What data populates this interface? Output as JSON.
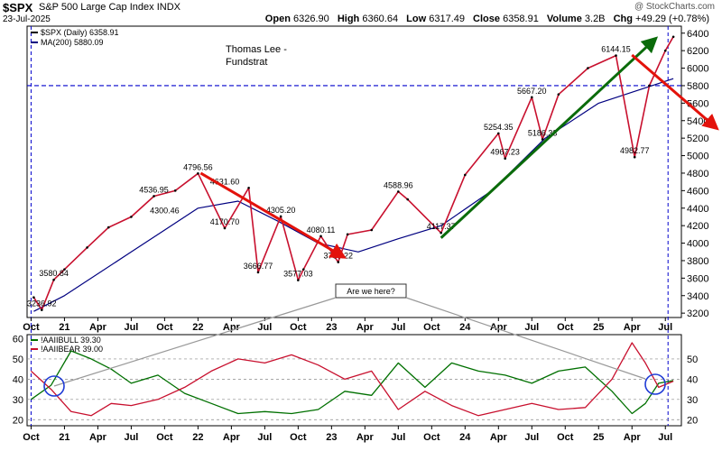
{
  "header": {
    "symbol": "$SPX",
    "name": "S&P 500 Large Cap Index",
    "exchange": "INDX",
    "date": "23-Jul-2025",
    "credit": "@ StockCharts.com",
    "open_label": "Open",
    "open": "6326.90",
    "high_label": "High",
    "high": "6360.64",
    "low_label": "Low",
    "low": "6317.49",
    "close_label": "Close",
    "close": "6358.91",
    "volume_label": "Volume",
    "volume": "3.2B",
    "chg_label": "Chg",
    "chg": "+49.29 (+0.78%)"
  },
  "annotations": {
    "author": [
      "Thomas Lee -",
      "Fundstrat"
    ],
    "callout": "Are we here?"
  },
  "colors": {
    "price": "#c8102e",
    "ma": "#000080",
    "bull": "#007000",
    "bear": "#c8102e",
    "red_arrow": "#e3120b",
    "green_arrow": "#0a6b0a",
    "dashed": "#0000cc"
  },
  "chart_data": [
    {
      "type": "line",
      "legend": [
        "$SPX (Daily) 6358.91",
        "MA(200) 5880.09"
      ],
      "series": [
        {
          "name": "$SPX (Daily)",
          "x": [
            2020.77,
            2020.83,
            2020.92,
            2021.0,
            2021.17,
            2021.33,
            2021.5,
            2021.67,
            2021.83,
            2022.0,
            2022.2,
            2022.38,
            2022.45,
            2022.62,
            2022.75,
            2022.79,
            2022.92,
            2023.05,
            2023.12,
            2023.3,
            2023.5,
            2023.57,
            2023.82,
            2024.0,
            2024.25,
            2024.3,
            2024.5,
            2024.58,
            2024.7,
            2024.92,
            2025.13,
            2025.27,
            2025.38,
            2025.5,
            2025.56
          ],
          "y": [
            3380,
            3236.92,
            3580.84,
            3700,
            3950,
            4180,
            4300.46,
            4536.95,
            4600,
            4796.56,
            4170.7,
            4631.6,
            3666.77,
            4305.2,
            3577.03,
            3700,
            4080.11,
            3783.22,
            4100,
            4150,
            4588.96,
            4500,
            4117.37,
            4780,
            5254.35,
            4967.23,
            5667.2,
            5186.33,
            5700,
            6000,
            6144.15,
            4982.77,
            5800,
            6200,
            6358.91
          ]
        },
        {
          "name": "MA(200)",
          "x": [
            2020.77,
            2021.0,
            2021.5,
            2022.0,
            2022.3,
            2022.6,
            2022.9,
            2023.2,
            2023.5,
            2023.82,
            2024.2,
            2024.6,
            2025.0,
            2025.3,
            2025.56
          ],
          "y": [
            3220,
            3400,
            3900,
            4400,
            4480,
            4250,
            4000,
            3900,
            4050,
            4200,
            4600,
            5200,
            5600,
            5750,
            5880.09
          ]
        }
      ],
      "price_labels": [
        {
          "x": 2020.92,
          "y": 3580.84,
          "text": "3580.84"
        },
        {
          "x": 2020.83,
          "y": 3236.92,
          "text": "3236.92"
        },
        {
          "x": 2021.67,
          "y": 4536.95,
          "text": "4536.95"
        },
        {
          "x": 2021.75,
          "y": 4300.46,
          "text": "4300.46"
        },
        {
          "x": 2022.0,
          "y": 4796.56,
          "text": "4796.56"
        },
        {
          "x": 2022.2,
          "y": 4631.6,
          "text": "4631.60"
        },
        {
          "x": 2022.2,
          "y": 4170.7,
          "text": "4170.70"
        },
        {
          "x": 2022.45,
          "y": 3666.77,
          "text": "3666.77"
        },
        {
          "x": 2022.62,
          "y": 4305.2,
          "text": "4305.20"
        },
        {
          "x": 2022.75,
          "y": 3577.03,
          "text": "3577.03"
        },
        {
          "x": 2022.92,
          "y": 4080.11,
          "text": "4080.11"
        },
        {
          "x": 2023.05,
          "y": 3783.22,
          "text": "3783.22"
        },
        {
          "x": 2023.5,
          "y": 4588.96,
          "text": "4588.96"
        },
        {
          "x": 2023.82,
          "y": 4117.37,
          "text": "4117.37"
        },
        {
          "x": 2024.25,
          "y": 5254.35,
          "text": "5254.35"
        },
        {
          "x": 2024.3,
          "y": 4967.23,
          "text": "4967.23"
        },
        {
          "x": 2024.5,
          "y": 5667.2,
          "text": "5667.20"
        },
        {
          "x": 2024.58,
          "y": 5186.33,
          "text": "5186.33"
        },
        {
          "x": 2025.13,
          "y": 6144.15,
          "text": "6144.15"
        },
        {
          "x": 2025.27,
          "y": 4982.77,
          "text": "4982.77"
        }
      ],
      "horizontal_line": 5800,
      "y_ticks": [
        3200,
        3400,
        3600,
        3800,
        4000,
        4200,
        4400,
        4600,
        4800,
        5000,
        5200,
        5400,
        5600,
        5800,
        6000,
        6200,
        6400
      ],
      "ylim": [
        3150,
        6480
      ]
    },
    {
      "type": "line",
      "legend": [
        "!AAIIBULL 39.30",
        "!AAIIBEAR 39.00"
      ],
      "series": [
        {
          "name": "!AAIIBULL",
          "x": [
            2020.75,
            2020.9,
            2021.05,
            2021.2,
            2021.35,
            2021.5,
            2021.7,
            2021.9,
            2022.1,
            2022.3,
            2022.5,
            2022.7,
            2022.9,
            2023.1,
            2023.3,
            2023.5,
            2023.7,
            2023.9,
            2024.1,
            2024.3,
            2024.5,
            2024.7,
            2024.9,
            2025.1,
            2025.25,
            2025.35,
            2025.45,
            2025.56
          ],
          "y": [
            30,
            37,
            54,
            50,
            45,
            38,
            42,
            33,
            28,
            23,
            24,
            23,
            25,
            34,
            32,
            48,
            36,
            48,
            44,
            42,
            38,
            44,
            46,
            34,
            23,
            28,
            38,
            39.3
          ]
        },
        {
          "name": "!AAIIBEAR",
          "x": [
            2020.75,
            2020.9,
            2021.05,
            2021.2,
            2021.35,
            2021.5,
            2021.7,
            2021.9,
            2022.1,
            2022.3,
            2022.5,
            2022.7,
            2022.9,
            2023.1,
            2023.3,
            2023.5,
            2023.7,
            2023.9,
            2024.1,
            2024.3,
            2024.5,
            2024.7,
            2024.9,
            2025.1,
            2025.25,
            2025.35,
            2025.45,
            2025.56
          ],
          "y": [
            44,
            35,
            24,
            22,
            28,
            27,
            30,
            36,
            44,
            50,
            48,
            52,
            47,
            40,
            44,
            25,
            34,
            27,
            22,
            25,
            28,
            25,
            26,
            40,
            58,
            48,
            36,
            39
          ]
        }
      ],
      "y_ticks_left": [
        20,
        30,
        40,
        50,
        60
      ],
      "y_ticks_right": [
        20,
        30,
        40,
        50
      ],
      "ylim": [
        17,
        62
      ]
    }
  ],
  "x_axis": {
    "ticks": [
      {
        "x": 2020.75,
        "label": "Oct"
      },
      {
        "x": 2021.0,
        "label": "21"
      },
      {
        "x": 2021.25,
        "label": "Apr"
      },
      {
        "x": 2021.5,
        "label": "Jul"
      },
      {
        "x": 2021.75,
        "label": "Oct"
      },
      {
        "x": 2022.0,
        "label": "22"
      },
      {
        "x": 2022.25,
        "label": "Apr"
      },
      {
        "x": 2022.5,
        "label": "Jul"
      },
      {
        "x": 2022.75,
        "label": "Oct"
      },
      {
        "x": 2023.0,
        "label": "23"
      },
      {
        "x": 2023.25,
        "label": "Apr"
      },
      {
        "x": 2023.5,
        "label": "Jul"
      },
      {
        "x": 2023.75,
        "label": "Oct"
      },
      {
        "x": 2024.0,
        "label": "24"
      },
      {
        "x": 2024.25,
        "label": "Apr"
      },
      {
        "x": 2024.5,
        "label": "Jul"
      },
      {
        "x": 2024.75,
        "label": "Oct"
      },
      {
        "x": 2025.0,
        "label": "25"
      },
      {
        "x": 2025.25,
        "label": "Apr"
      },
      {
        "x": 2025.5,
        "label": "Jul"
      }
    ],
    "xlim": [
      2020.72,
      2025.62
    ]
  }
}
